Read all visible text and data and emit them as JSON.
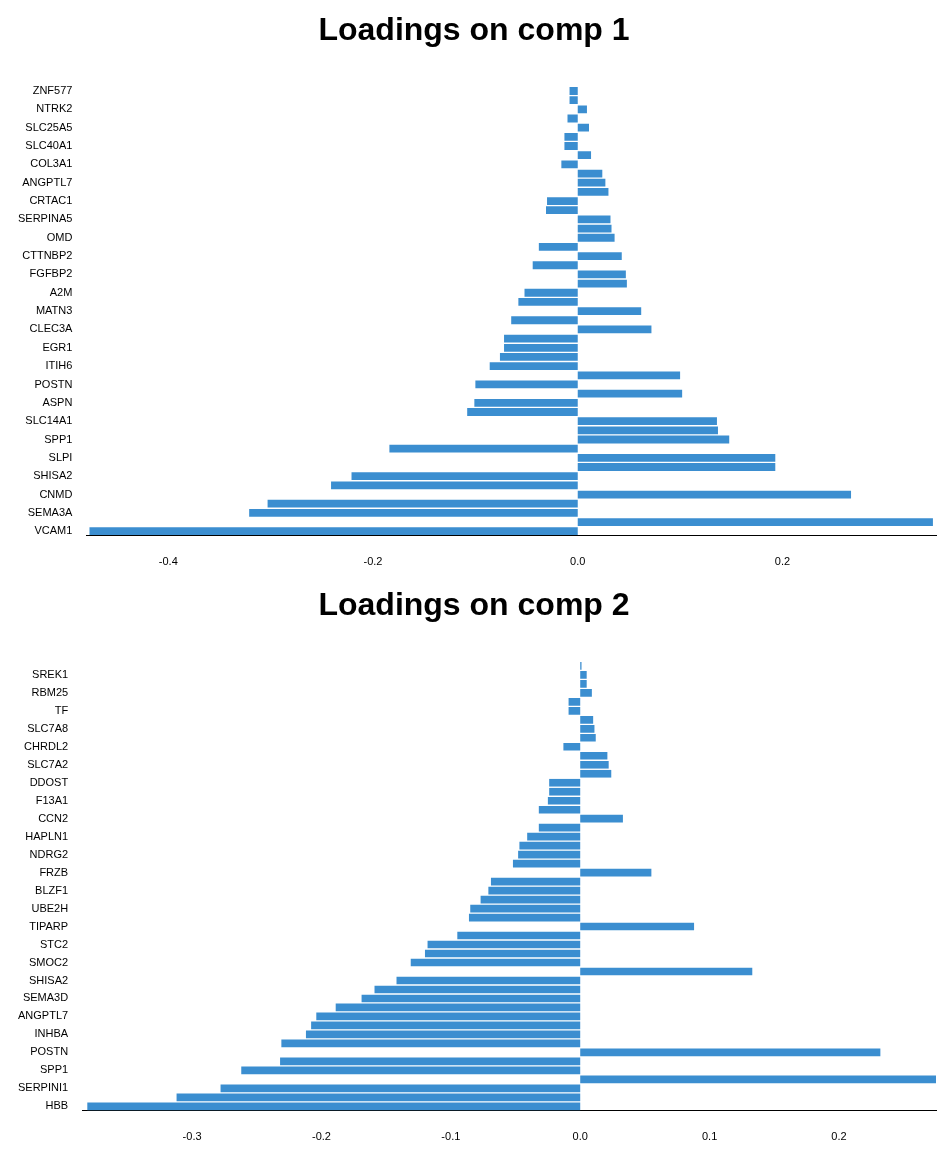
{
  "chart_data": [
    {
      "type": "bar",
      "orientation": "horizontal",
      "title": "Loadings on comp 1",
      "color": "#3b8ed0",
      "categories": [
        "ZNF577",
        null,
        "NTRK2",
        null,
        "SLC25A5",
        null,
        "SLC40A1",
        null,
        "COL3A1",
        null,
        "ANGPTL7",
        null,
        "CRTAC1",
        null,
        "SERPINA5",
        null,
        "OMD",
        null,
        "CTTNBP2",
        null,
        "FGFBP2",
        null,
        "A2M",
        null,
        "MATN3",
        null,
        "CLEC3A",
        null,
        "EGR1",
        null,
        "ITIH6",
        null,
        "POSTN",
        null,
        "ASPN",
        null,
        "SLC14A1",
        null,
        "SPP1",
        null,
        "SLPI",
        null,
        "SHISA2",
        null,
        "CNMD",
        null,
        "SEMA3A",
        null,
        "VCAM1"
      ],
      "values": [
        -0.008,
        -0.008,
        0.009,
        -0.01,
        0.011,
        -0.013,
        -0.013,
        0.013,
        -0.016,
        0.024,
        0.027,
        0.03,
        -0.03,
        -0.031,
        0.032,
        0.033,
        0.036,
        -0.038,
        0.043,
        -0.044,
        0.047,
        0.048,
        -0.052,
        -0.058,
        0.062,
        -0.065,
        0.072,
        -0.072,
        -0.072,
        -0.076,
        -0.086,
        0.1,
        -0.1,
        0.102,
        -0.101,
        -0.108,
        0.136,
        0.137,
        0.148,
        -0.184,
        0.193,
        0.193,
        -0.221,
        -0.241,
        0.267,
        -0.303,
        -0.321,
        0.347,
        -0.477
      ],
      "xlim": [
        -0.48,
        0.35
      ],
      "xticks": [
        -0.4,
        -0.2,
        {
          "value": 0,
          "label": "0.0"
        },
        0.2
      ]
    },
    {
      "type": "bar",
      "orientation": "horizontal",
      "title": "Loadings on comp 2",
      "color": "#3b8ed0",
      "categories": [
        null,
        "SREK1",
        null,
        "RBM25",
        null,
        "TF",
        null,
        "SLC7A8",
        null,
        "CHRDL2",
        null,
        "SLC7A2",
        null,
        "DDOST",
        null,
        "F13A1",
        null,
        "CCN2",
        null,
        "HAPLN1",
        null,
        "NDRG2",
        null,
        "FRZB",
        null,
        "BLZF1",
        null,
        "UBE2H",
        null,
        "TIPARP",
        null,
        "STC2",
        null,
        "SMOC2",
        null,
        "SHISA2",
        null,
        "SEMA3D",
        null,
        "ANGPTL7",
        null,
        "INHBA",
        null,
        "POSTN",
        null,
        "SPP1",
        null,
        "SERPINI1",
        null,
        "HBB"
      ],
      "values": [
        0.001,
        0.005,
        0.005,
        0.009,
        -0.009,
        -0.009,
        0.01,
        0.011,
        0.012,
        -0.013,
        0.021,
        0.022,
        0.024,
        -0.024,
        -0.024,
        -0.025,
        -0.032,
        0.033,
        -0.032,
        -0.041,
        -0.047,
        -0.048,
        -0.052,
        0.055,
        -0.069,
        -0.071,
        -0.077,
        -0.085,
        -0.086,
        0.088,
        -0.095,
        -0.118,
        -0.12,
        -0.131,
        0.133,
        -0.142,
        -0.159,
        -0.169,
        -0.189,
        -0.204,
        -0.208,
        -0.212,
        -0.231,
        0.232,
        -0.232,
        -0.262,
        0.275,
        -0.278,
        -0.312,
        -0.381
      ],
      "xlim": [
        -0.385,
        0.275
      ],
      "xticks": [
        -0.3,
        -0.2,
        -0.1,
        {
          "value": 0,
          "label": "0.0"
        },
        0.1,
        0.2
      ]
    }
  ]
}
